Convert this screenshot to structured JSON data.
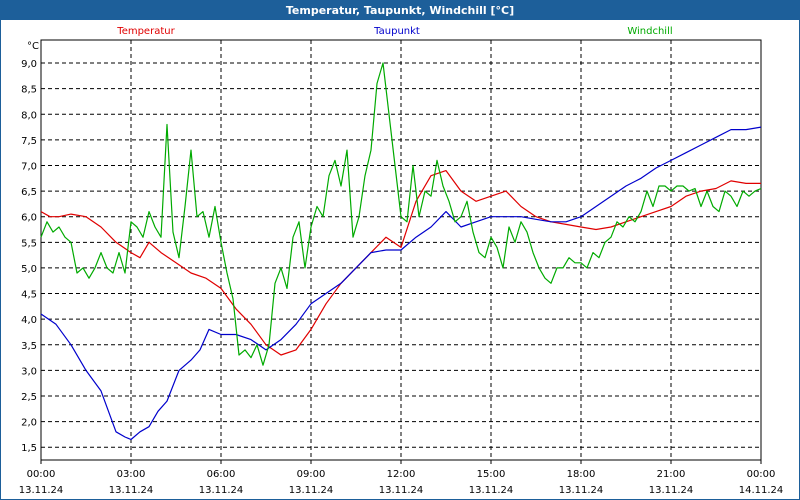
{
  "chart_data": {
    "type": "line",
    "title": "Temperatur, Taupunkt, Windchill [°C]",
    "ylabel": "°C",
    "ylim": [
      1.25,
      9.45
    ],
    "yticks": [
      "1,5",
      "2,0",
      "2,5",
      "3,0",
      "3,5",
      "4,0",
      "4,5",
      "5,0",
      "5,5",
      "6,0",
      "6,5",
      "7,0",
      "7,5",
      "8,0",
      "8,5",
      "9,0"
    ],
    "ytick_values": [
      1.5,
      2.0,
      2.5,
      3.0,
      3.5,
      4.0,
      4.5,
      5.0,
      5.5,
      6.0,
      6.5,
      7.0,
      7.5,
      8.0,
      8.5,
      9.0
    ],
    "xlim": [
      0,
      24
    ],
    "xticks": [
      {
        "time": "00:00",
        "date": "13.11.24"
      },
      {
        "time": "03:00",
        "date": "13.11.24"
      },
      {
        "time": "06:00",
        "date": "13.11.24"
      },
      {
        "time": "09:00",
        "date": "13.11.24"
      },
      {
        "time": "12:00",
        "date": "13.11.24"
      },
      {
        "time": "15:00",
        "date": "13.11.24"
      },
      {
        "time": "18:00",
        "date": "13.11.24"
      },
      {
        "time": "21:00",
        "date": "13.11.24"
      },
      {
        "time": "00:00",
        "date": "14.11.24"
      }
    ],
    "grid": true,
    "series": [
      {
        "name": "Temperatur",
        "color": "#e00000",
        "x": [
          0,
          0.3,
          0.6,
          1,
          1.5,
          2,
          2.5,
          3,
          3.3,
          3.6,
          4,
          4.5,
          5,
          5.5,
          6,
          6.5,
          7,
          7.5,
          8,
          8.5,
          9,
          9.5,
          10,
          10.5,
          11,
          11.5,
          12,
          12.5,
          13,
          13.5,
          14,
          14.5,
          15,
          15.5,
          16,
          16.5,
          17,
          17.5,
          18,
          18.5,
          19,
          19.5,
          20,
          20.5,
          21,
          21.5,
          22,
          22.5,
          23,
          23.5,
          24
        ],
        "values": [
          6.1,
          6.0,
          6.0,
          6.05,
          6.0,
          5.8,
          5.5,
          5.3,
          5.2,
          5.5,
          5.3,
          5.1,
          4.9,
          4.8,
          4.6,
          4.2,
          3.9,
          3.5,
          3.3,
          3.4,
          3.8,
          4.3,
          4.7,
          5.0,
          5.3,
          5.6,
          5.4,
          6.3,
          6.8,
          6.9,
          6.5,
          6.3,
          6.4,
          6.5,
          6.2,
          6.0,
          5.9,
          5.85,
          5.8,
          5.75,
          5.8,
          5.9,
          6.0,
          6.1,
          6.2,
          6.4,
          6.5,
          6.55,
          6.7,
          6.65,
          6.65
        ]
      },
      {
        "name": "Taupunkt",
        "color": "#0000cc",
        "x": [
          0,
          0.5,
          1,
          1.5,
          2,
          2.5,
          2.8,
          3,
          3.3,
          3.6,
          3.9,
          4.2,
          4.6,
          5,
          5.3,
          5.6,
          6,
          6.5,
          7,
          7.5,
          8,
          8.5,
          9,
          9.5,
          10,
          10.5,
          11,
          11.5,
          12,
          12.5,
          13,
          13.5,
          14,
          14.5,
          15,
          15.5,
          16,
          16.5,
          17,
          17.5,
          18,
          18.5,
          19,
          19.5,
          20,
          20.5,
          21,
          21.5,
          22,
          22.5,
          23,
          23.5,
          24
        ],
        "values": [
          4.1,
          3.9,
          3.5,
          3.0,
          2.6,
          1.8,
          1.7,
          1.65,
          1.8,
          1.9,
          2.2,
          2.4,
          3.0,
          3.2,
          3.4,
          3.8,
          3.7,
          3.7,
          3.6,
          3.4,
          3.6,
          3.9,
          4.3,
          4.5,
          4.7,
          5.0,
          5.3,
          5.35,
          5.35,
          5.6,
          5.8,
          6.1,
          5.8,
          5.9,
          6.0,
          6.0,
          6.0,
          5.95,
          5.9,
          5.9,
          6.0,
          6.2,
          6.4,
          6.6,
          6.75,
          6.95,
          7.1,
          7.25,
          7.4,
          7.55,
          7.7,
          7.7,
          7.75
        ]
      },
      {
        "name": "Windchill",
        "color": "#00aa00",
        "x": [
          0,
          0.2,
          0.4,
          0.6,
          0.8,
          1,
          1.2,
          1.4,
          1.6,
          1.8,
          2,
          2.2,
          2.4,
          2.6,
          2.8,
          3,
          3.2,
          3.4,
          3.6,
          3.8,
          4,
          4.2,
          4.4,
          4.6,
          4.8,
          5,
          5.2,
          5.4,
          5.6,
          5.8,
          6,
          6.2,
          6.4,
          6.6,
          6.8,
          7,
          7.2,
          7.4,
          7.6,
          7.8,
          8,
          8.2,
          8.4,
          8.6,
          8.8,
          9,
          9.2,
          9.4,
          9.6,
          9.8,
          10,
          10.2,
          10.4,
          10.6,
          10.8,
          11,
          11.2,
          11.4,
          11.6,
          11.8,
          12,
          12.2,
          12.4,
          12.6,
          12.8,
          13,
          13.2,
          13.4,
          13.6,
          13.8,
          14,
          14.2,
          14.4,
          14.6,
          14.8,
          15,
          15.2,
          15.4,
          15.6,
          15.8,
          16,
          16.2,
          16.4,
          16.6,
          16.8,
          17,
          17.2,
          17.4,
          17.6,
          17.8,
          18,
          18.2,
          18.4,
          18.6,
          18.8,
          19,
          19.2,
          19.4,
          19.6,
          19.8,
          20,
          20.2,
          20.4,
          20.6,
          20.8,
          21,
          21.2,
          21.4,
          21.6,
          21.8,
          22,
          22.2,
          22.4,
          22.6,
          22.8,
          23,
          23.2,
          23.4,
          23.6,
          23.8,
          24
        ],
        "values": [
          5.6,
          5.9,
          5.7,
          5.8,
          5.6,
          5.5,
          4.9,
          5.0,
          4.8,
          5.0,
          5.3,
          5.0,
          4.9,
          5.3,
          4.9,
          5.9,
          5.8,
          5.6,
          6.1,
          5.8,
          5.6,
          7.8,
          5.7,
          5.2,
          6.2,
          7.3,
          6.0,
          6.1,
          5.6,
          6.2,
          5.5,
          4.9,
          4.4,
          3.3,
          3.4,
          3.25,
          3.5,
          3.1,
          3.5,
          4.7,
          5.0,
          4.6,
          5.6,
          5.9,
          5.0,
          5.8,
          6.2,
          6.0,
          6.8,
          7.1,
          6.6,
          7.3,
          5.6,
          6.0,
          6.8,
          7.3,
          8.6,
          9.0,
          8.0,
          7.0,
          6.0,
          5.9,
          7.0,
          6.0,
          6.5,
          6.4,
          7.1,
          6.6,
          6.3,
          5.9,
          6.0,
          6.3,
          5.7,
          5.3,
          5.2,
          5.6,
          5.4,
          5.0,
          5.8,
          5.5,
          5.9,
          5.7,
          5.3,
          5.0,
          4.8,
          4.7,
          5.0,
          5.0,
          5.2,
          5.1,
          5.1,
          5.0,
          5.3,
          5.2,
          5.5,
          5.6,
          5.9,
          5.8,
          6.0,
          5.9,
          6.1,
          6.5,
          6.2,
          6.6,
          6.6,
          6.5,
          6.6,
          6.6,
          6.5,
          6.55,
          6.2,
          6.5,
          6.2,
          6.1,
          6.5,
          6.4,
          6.2,
          6.5,
          6.4,
          6.5,
          6.55
        ]
      }
    ]
  }
}
